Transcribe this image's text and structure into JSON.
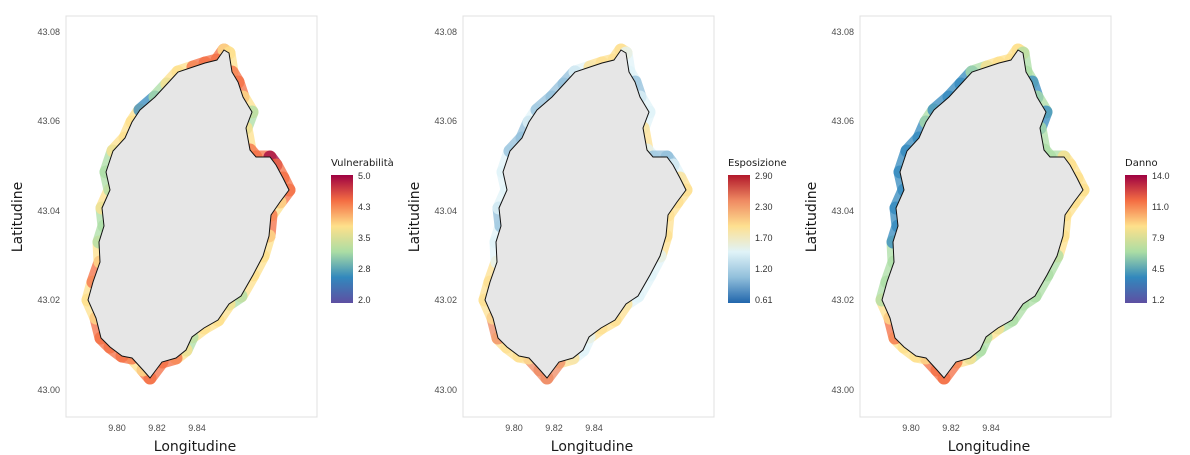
{
  "maps": [
    {
      "id": "vulnerabilita",
      "x_axis_label": "Longitudine",
      "y_axis_label": "Latitudine",
      "x_ticks": [
        "9.80",
        "9.82",
        "9.84"
      ],
      "y_ticks": [
        "43.08",
        "43.06",
        "43.04",
        "43.02",
        "43.00"
      ],
      "legend_title": "Vulnerabilità",
      "legend_labels": [
        "5.0",
        "4.3",
        "3.5",
        "2.8",
        "2.0"
      ],
      "legend_colors": [
        "#9e0142",
        "#f46d43",
        "#fee08b",
        "#abdda4",
        "#3288bd",
        "#5e4fa2"
      ]
    },
    {
      "id": "esposizione",
      "x_axis_label": "Longitudine",
      "y_axis_label": "Latitudine",
      "x_ticks": [
        "9.80",
        "9.82",
        "9.84"
      ],
      "y_ticks": [
        "43.08",
        "43.06",
        "43.04",
        "43.02",
        "43.00"
      ],
      "legend_title": "Esposizione",
      "legend_labels": [
        "2.90",
        "2.30",
        "1.70",
        "1.20",
        "0.61"
      ],
      "legend_colors": [
        "#b2182b",
        "#ef8a62",
        "#fee090",
        "#e0f3f8",
        "#91bfdb",
        "#2166ac"
      ]
    },
    {
      "id": "danno",
      "x_axis_label": "Longitudine",
      "y_axis_label": "Latitudine",
      "x_ticks": [
        "9.80",
        "9.82",
        "9.84"
      ],
      "y_ticks": [
        "43.08",
        "43.06",
        "43.04",
        "43.02",
        "43.00"
      ],
      "legend_title": "Danno",
      "legend_labels": [
        "14.0",
        "11.0",
        "7.9",
        "4.5",
        "1.2"
      ],
      "legend_colors": [
        "#9e0142",
        "#f46d43",
        "#fee08b",
        "#abdda4",
        "#3288bd",
        "#5e4fa2"
      ]
    }
  ],
  "colors": {
    "panel_background": "#ffffff",
    "panel_border": "#e0e0e0",
    "land_fill": "#e6e6e6",
    "coastline": "#111111"
  }
}
